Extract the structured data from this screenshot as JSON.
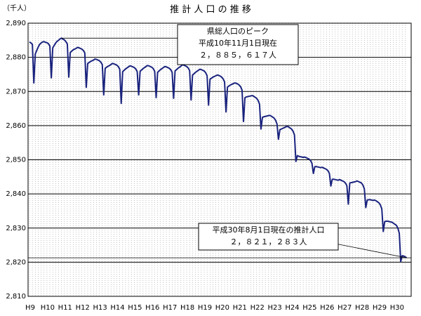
{
  "chart_data": {
    "type": "line",
    "title": "推 計 人 口 の 推 移",
    "y_label": "（千人）",
    "ylim": [
      2810,
      2890
    ],
    "yticks": [
      {
        "value": 2810,
        "label": "2,810"
      },
      {
        "value": 2820,
        "label": "2,820"
      },
      {
        "value": 2830,
        "label": "2,830"
      },
      {
        "value": 2840,
        "label": "2,840"
      },
      {
        "value": 2850,
        "label": "2,850"
      },
      {
        "value": 2860,
        "label": "2,860"
      },
      {
        "value": 2870,
        "label": "2,870"
      },
      {
        "value": 2880,
        "label": "2,880"
      },
      {
        "value": 2890,
        "label": "2,890"
      }
    ],
    "grid": true,
    "categories": [
      "H9",
      null,
      null,
      null,
      null,
      null,
      null,
      null,
      null,
      null,
      null,
      null,
      "H10",
      null,
      null,
      null,
      null,
      null,
      null,
      null,
      null,
      null,
      null,
      null,
      "H11",
      null,
      null,
      null,
      null,
      null,
      null,
      null,
      null,
      null,
      null,
      null,
      "H12",
      null,
      null,
      null,
      null,
      null,
      null,
      null,
      null,
      null,
      null,
      null,
      "H13",
      null,
      null,
      null,
      null,
      null,
      null,
      null,
      null,
      null,
      null,
      null,
      "H14",
      null,
      null,
      null,
      null,
      null,
      null,
      null,
      null,
      null,
      null,
      null,
      "H15",
      null,
      null,
      null,
      null,
      null,
      null,
      null,
      null,
      null,
      null,
      null,
      "H16",
      null,
      null,
      null,
      null,
      null,
      null,
      null,
      null,
      null,
      null,
      null,
      "H17",
      null,
      null,
      null,
      null,
      null,
      null,
      null,
      null,
      null,
      null,
      null,
      "H18",
      null,
      null,
      null,
      null,
      null,
      null,
      null,
      null,
      null,
      null,
      null,
      "H19",
      null,
      null,
      null,
      null,
      null,
      null,
      null,
      null,
      null,
      null,
      null,
      "H20",
      null,
      null,
      null,
      null,
      null,
      null,
      null,
      null,
      null,
      null,
      null,
      "H21",
      null,
      null,
      null,
      null,
      null,
      null,
      null,
      null,
      null,
      null,
      null,
      "H22",
      null,
      null,
      null,
      null,
      null,
      null,
      null,
      null,
      null,
      null,
      null,
      "H23",
      null,
      null,
      null,
      null,
      null,
      null,
      null,
      null,
      null,
      null,
      null,
      "H24",
      null,
      null,
      null,
      null,
      null,
      null,
      null,
      null,
      null,
      null,
      null,
      "H25",
      null,
      null,
      null,
      null,
      null,
      null,
      null,
      null,
      null,
      null,
      null,
      "H26",
      null,
      null,
      null,
      null,
      null,
      null,
      null,
      null,
      null,
      null,
      null,
      "H27",
      null,
      null,
      null,
      null,
      null,
      null,
      null,
      null,
      null,
      null,
      null,
      "H28",
      null,
      null,
      null,
      null,
      null,
      null,
      null,
      null,
      null,
      null,
      null,
      "H29",
      null,
      null,
      null,
      null,
      null,
      null,
      null,
      null,
      null,
      null,
      null,
      "H30",
      null,
      null,
      null,
      null,
      null,
      null,
      null
    ],
    "series": [
      {
        "color": "#1a237e",
        "values": [
          2884.5,
          2884.2,
          2883.8,
          2872.5,
          2881.0,
          2882.0,
          2883.0,
          2883.8,
          2884.2,
          2884.5,
          2884.6,
          2884.4,
          2884.3,
          2884.0,
          2883.3,
          2874.0,
          2882.8,
          2883.5,
          2884.2,
          2884.7,
          2885.0,
          2885.4,
          2885.617,
          2885.3,
          2885.1,
          2884.6,
          2883.9,
          2874.2,
          2881.4,
          2881.8,
          2882.2,
          2882.4,
          2882.6,
          2882.9,
          2882.8,
          2882.6,
          2882.4,
          2882.0,
          2881.3,
          2871.2,
          2878.2,
          2878.5,
          2878.8,
          2879.0,
          2879.2,
          2879.5,
          2879.4,
          2879.2,
          2879.0,
          2878.6,
          2877.9,
          2869.0,
          2876.8,
          2877.1,
          2877.4,
          2877.6,
          2877.9,
          2878.2,
          2878.1,
          2877.9,
          2877.7,
          2877.3,
          2876.5,
          2866.5,
          2875.8,
          2876.2,
          2876.6,
          2876.9,
          2877.2,
          2877.5,
          2877.4,
          2877.2,
          2877.0,
          2876.6,
          2875.8,
          2869.0,
          2875.9,
          2876.3,
          2876.7,
          2877.0,
          2877.3,
          2877.6,
          2877.5,
          2877.3,
          2877.1,
          2876.7,
          2875.9,
          2868.2,
          2875.6,
          2876.0,
          2876.4,
          2876.7,
          2877.0,
          2877.3,
          2877.2,
          2877.0,
          2876.8,
          2876.4,
          2875.6,
          2868.0,
          2876.0,
          2876.4,
          2876.8,
          2877.1,
          2877.4,
          2877.8,
          2877.7,
          2877.5,
          2877.3,
          2876.9,
          2876.1,
          2867.5,
          2874.8,
          2875.2,
          2875.6,
          2875.9,
          2876.2,
          2876.5,
          2876.4,
          2876.2,
          2876.0,
          2875.5,
          2874.6,
          2866.0,
          2873.6,
          2873.9,
          2874.2,
          2874.4,
          2874.6,
          2874.8,
          2874.7,
          2874.5,
          2874.2,
          2873.7,
          2872.8,
          2864.0,
          2871.3,
          2871.6,
          2871.9,
          2872.1,
          2872.3,
          2872.5,
          2872.4,
          2872.2,
          2871.9,
          2871.4,
          2870.4,
          2861.2,
          2868.2,
          2868.4,
          2868.5,
          2868.6,
          2868.7,
          2868.8,
          2868.6,
          2868.3,
          2868.0,
          2867.4,
          2866.3,
          2859.0,
          2862.4,
          2862.6,
          2862.7,
          2862.8,
          2862.9,
          2863.0,
          2862.8,
          2862.5,
          2862.2,
          2861.6,
          2860.5,
          2856.0,
          2858.8,
          2859.0,
          2859.2,
          2859.4,
          2859.6,
          2859.8,
          2859.6,
          2859.3,
          2859.0,
          2858.4,
          2857.3,
          2849.5,
          2851.2,
          2851.0,
          2850.9,
          2850.8,
          2850.7,
          2850.8,
          2850.6,
          2850.4,
          2850.2,
          2849.8,
          2849.0,
          2846.0,
          2848.0,
          2848.0,
          2847.9,
          2847.8,
          2847.7,
          2847.8,
          2847.6,
          2847.4,
          2847.2,
          2846.8,
          2846.0,
          2842.3,
          2844.3,
          2844.3,
          2844.2,
          2844.1,
          2844.0,
          2844.2,
          2844.0,
          2843.8,
          2843.6,
          2843.2,
          2842.4,
          2837.0,
          2843.2,
          2843.3,
          2843.4,
          2843.5,
          2843.6,
          2843.8,
          2843.6,
          2843.4,
          2843.2,
          2842.6,
          2841.5,
          2836.0,
          2838.2,
          2838.3,
          2838.3,
          2838.2,
          2838.1,
          2838.2,
          2838.0,
          2837.7,
          2837.4,
          2836.8,
          2835.6,
          2829.0,
          2831.9,
          2832.0,
          2832.0,
          2831.9,
          2831.8,
          2831.7,
          2831.4,
          2831.1,
          2830.8,
          2830.0,
          2828.5,
          2820.2,
          2821.9,
          2821.8,
          2821.6,
          2821.283
        ]
      }
    ],
    "annotations": [
      {
        "lines": [
          "県総人口のピーク",
          "平成10年11月1日現在",
          "２，８８５，６１７人"
        ]
      },
      {
        "lines": [
          "平成30年8月1日現在の推計人口",
          "２，８２１，２８３人"
        ]
      }
    ]
  }
}
